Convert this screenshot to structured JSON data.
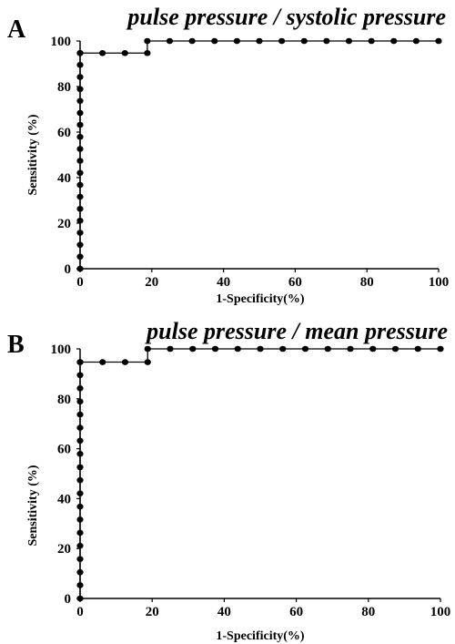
{
  "chart_data": [
    {
      "type": "line",
      "panel_letter": "A",
      "title": "pulse pressure / systolic pressure",
      "xlabel": "1-Specificity(%)",
      "ylabel": "Sensitivity (%)",
      "xlim": [
        0,
        100
      ],
      "ylim": [
        0,
        100
      ],
      "xticks": [
        "0",
        "20",
        "40",
        "60",
        "80",
        "100"
      ],
      "yticks": [
        "0",
        "20",
        "40",
        "60",
        "80",
        "100"
      ],
      "grid": false,
      "series": [
        {
          "x": [
            0,
            0,
            0,
            0,
            0,
            0,
            0,
            0,
            0,
            0,
            0,
            0,
            0,
            0,
            0,
            0,
            0,
            0,
            0,
            0,
            6.25,
            12.5,
            18.75,
            18.75,
            25,
            31.25,
            37.5,
            43.75,
            50,
            56.25,
            62.5,
            68.75,
            75,
            81.25,
            87.5,
            93.75,
            100
          ],
          "y": [
            0,
            5.3,
            10.5,
            15.8,
            21.1,
            26.3,
            31.6,
            36.8,
            42.1,
            47.4,
            52.6,
            57.9,
            63.2,
            68.4,
            73.7,
            78.9,
            84.2,
            89.5,
            94.7,
            94.7,
            94.7,
            94.7,
            94.7,
            100,
            100,
            100,
            100,
            100,
            100,
            100,
            100,
            100,
            100,
            100,
            100,
            100,
            100
          ]
        }
      ]
    },
    {
      "type": "line",
      "panel_letter": "B",
      "title": "pulse pressure / mean pressure",
      "xlabel": "1-Specificity(%)",
      "ylabel": "Sensitivity (%)",
      "xlim": [
        0,
        100
      ],
      "ylim": [
        0,
        100
      ],
      "xticks": [
        "0",
        "20",
        "40",
        "60",
        "80",
        "100"
      ],
      "yticks": [
        "0",
        "20",
        "40",
        "60",
        "80",
        "100"
      ],
      "grid": false,
      "series": [
        {
          "x": [
            0,
            0,
            0,
            0,
            0,
            0,
            0,
            0,
            0,
            0,
            0,
            0,
            0,
            0,
            0,
            0,
            0,
            0,
            0,
            0,
            6.25,
            12.5,
            18.75,
            18.75,
            25,
            31.25,
            37.5,
            43.75,
            50,
            56.25,
            62.5,
            68.75,
            75,
            81.25,
            87.5,
            93.75,
            100
          ],
          "y": [
            0,
            5.3,
            10.5,
            15.8,
            21.1,
            26.3,
            31.6,
            36.8,
            42.1,
            47.4,
            52.6,
            57.9,
            63.2,
            68.4,
            73.7,
            78.9,
            84.2,
            89.5,
            94.7,
            94.7,
            94.7,
            94.7,
            94.7,
            100,
            100,
            100,
            100,
            100,
            100,
            100,
            100,
            100,
            100,
            100,
            100,
            100,
            100
          ]
        }
      ]
    }
  ]
}
